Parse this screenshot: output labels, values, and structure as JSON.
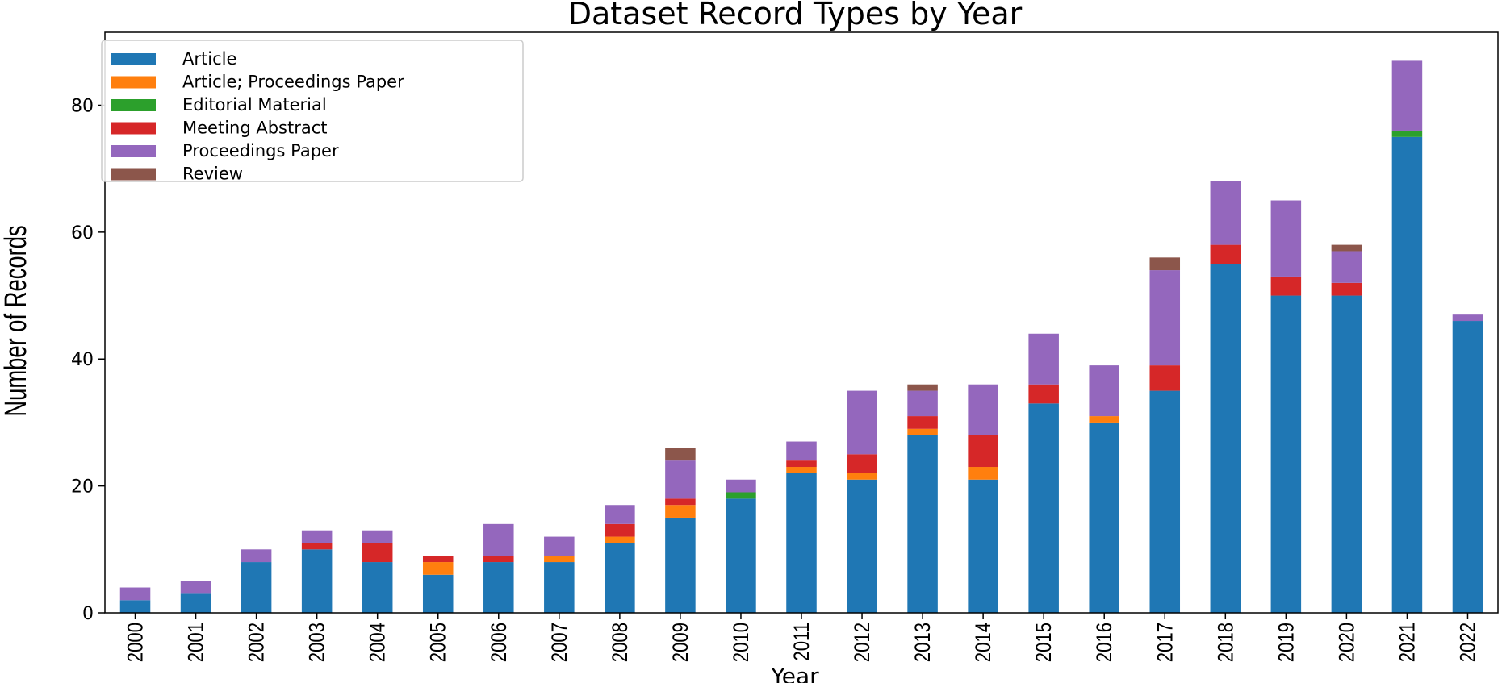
{
  "chart_data": {
    "type": "bar",
    "stacked": true,
    "title": "Dataset Record Types by Year",
    "xlabel": "Year",
    "ylabel": "Number of Records",
    "ylim": [
      0,
      91.5
    ],
    "yticks": [
      0,
      20,
      40,
      60,
      80
    ],
    "grid": false,
    "legend_position": "top-left",
    "categories": [
      "2000",
      "2001",
      "2002",
      "2003",
      "2004",
      "2005",
      "2006",
      "2007",
      "2008",
      "2009",
      "2010",
      "2011",
      "2012",
      "2013",
      "2014",
      "2015",
      "2016",
      "2017",
      "2018",
      "2019",
      "2020",
      "2021",
      "2022"
    ],
    "series": [
      {
        "name": "Article",
        "color": "#1f77b4",
        "values": [
          2,
          3,
          8,
          10,
          8,
          6,
          8,
          8,
          11,
          15,
          18,
          22,
          21,
          28,
          21,
          33,
          30,
          35,
          55,
          50,
          50,
          75,
          46
        ]
      },
      {
        "name": "Article; Proceedings Paper",
        "color": "#ff7f0e",
        "values": [
          0,
          0,
          0,
          0,
          0,
          2,
          0,
          1,
          1,
          2,
          0,
          1,
          1,
          1,
          2,
          0,
          1,
          0,
          0,
          0,
          0,
          0,
          0
        ]
      },
      {
        "name": "Editorial Material",
        "color": "#2ca02c",
        "values": [
          0,
          0,
          0,
          0,
          0,
          0,
          0,
          0,
          0,
          0,
          1,
          0,
          0,
          0,
          0,
          0,
          0,
          0,
          0,
          0,
          0,
          1,
          0
        ]
      },
      {
        "name": "Meeting Abstract",
        "color": "#d62728",
        "values": [
          0,
          0,
          0,
          1,
          3,
          1,
          1,
          0,
          2,
          1,
          0,
          1,
          3,
          2,
          5,
          3,
          0,
          4,
          3,
          3,
          2,
          0,
          0
        ]
      },
      {
        "name": "Proceedings Paper",
        "color": "#9467bd",
        "values": [
          2,
          2,
          2,
          2,
          2,
          0,
          5,
          3,
          3,
          6,
          2,
          3,
          10,
          4,
          8,
          8,
          8,
          15,
          10,
          12,
          5,
          11,
          1
        ]
      },
      {
        "name": "Review",
        "color": "#8c564b",
        "values": [
          0,
          0,
          0,
          0,
          0,
          0,
          0,
          0,
          0,
          2,
          0,
          0,
          0,
          1,
          0,
          0,
          0,
          2,
          0,
          0,
          1,
          0,
          0
        ]
      }
    ]
  }
}
